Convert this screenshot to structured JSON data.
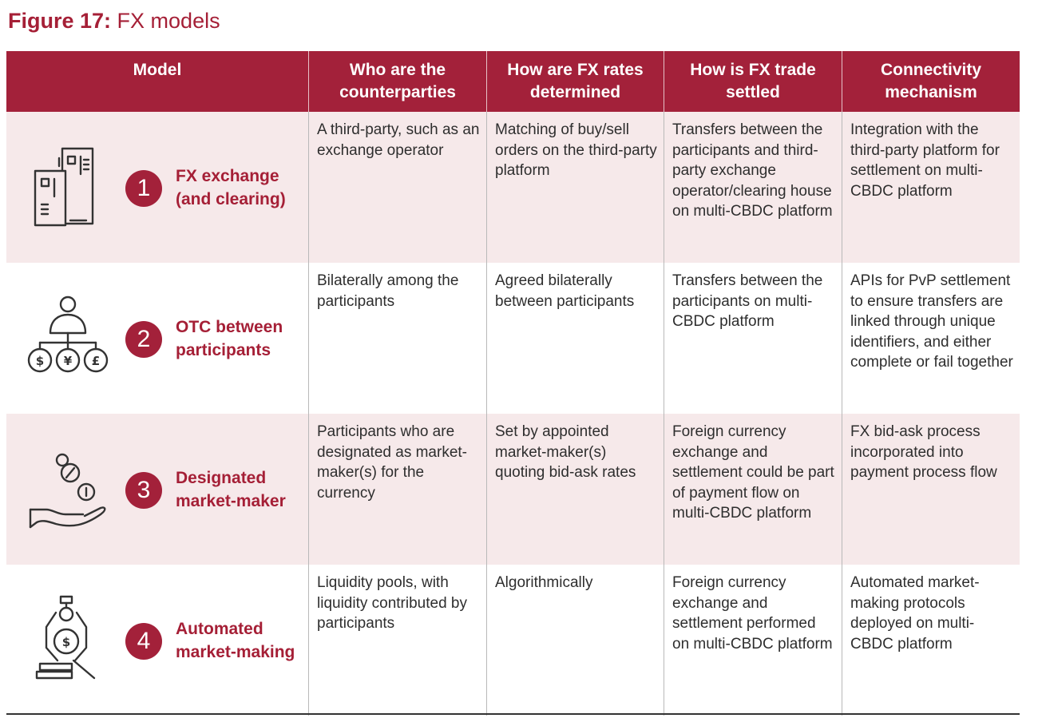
{
  "figure": {
    "label": "Figure 17:",
    "name": "FX models"
  },
  "headers": {
    "model": "Model",
    "counterparties": "Who are the counterparties",
    "rates": "How are FX rates determined",
    "settled": "How is FX trade settled",
    "connectivity": "Connectivity mechanism"
  },
  "rows": [
    {
      "number": "1",
      "name": "FX exchange (and clearing)",
      "icon": "buildings-icon",
      "counterparties": "A third-party, such as an exchange operator",
      "rates": "Matching of buy/sell orders on the third-party platform",
      "settled": "Transfers between the participants and third-party exchange operator/clearing house on multi-CBDC platform",
      "connectivity": "Integration with the third-party platform for settlement on multi-CBDC platform"
    },
    {
      "number": "2",
      "name": "OTC between participants",
      "icon": "person-currencies-icon",
      "counterparties": "Bilaterally among the participants",
      "rates": "Agreed bilaterally between participants",
      "settled": "Transfers between the participants on multi-CBDC platform",
      "connectivity": "APIs for PvP settlement to ensure transfers are linked through unique identifiers, and either complete or fail together"
    },
    {
      "number": "3",
      "name": "Designated market-maker",
      "icon": "hand-coins-icon",
      "counterparties": "Participants who are designated as market-maker(s) for the currency",
      "rates": "Set by appointed market-maker(s) quoting bid-ask rates",
      "settled": "Foreign currency exchange and settlement could be part of payment flow on multi-CBDC platform",
      "connectivity": "FX bid-ask process incorporated into payment process flow"
    },
    {
      "number": "4",
      "name": "Automated market-making",
      "icon": "robot-arm-coin-icon",
      "counterparties": "Liquidity pools, with liquidity contributed by participants",
      "rates": "Algorithmically",
      "settled": "Foreign currency exchange and settlement performed on multi-CBDC platform",
      "connectivity": "Automated market-making protocols deployed on multi-CBDC platform"
    }
  ],
  "currency_symbols": [
    "$",
    "¥",
    "£"
  ],
  "colors": {
    "accent": "#a3213a",
    "row_shade": "#f6e9ea"
  }
}
